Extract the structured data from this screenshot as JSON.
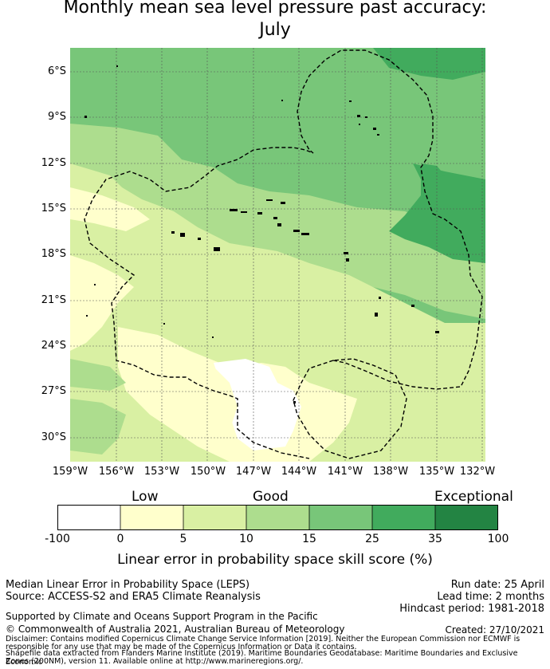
{
  "title_line1": "Monthly mean sea level pressure past accuracy:",
  "title_line2": "July",
  "y_ticks": [
    "6°S",
    "9°S",
    "12°S",
    "15°S",
    "18°S",
    "21°S",
    "24°S",
    "27°S",
    "30°S"
  ],
  "x_ticks": [
    "159°W",
    "156°W",
    "153°W",
    "150°W",
    "147°W",
    "144°W",
    "141°W",
    "138°W",
    "135°W",
    "132°W"
  ],
  "colorbar": {
    "category_labels": [
      "Low",
      "Good",
      "Exceptional"
    ],
    "ticks": [
      "-100",
      "0",
      "5",
      "10",
      "15",
      "25",
      "35",
      "100"
    ],
    "colors": [
      "#ffffff",
      "#ffffcc",
      "#d9f0a3",
      "#addd8e",
      "#78c679",
      "#41ab5d",
      "#238443"
    ],
    "label": "Linear error in probability space skill score (%)"
  },
  "footer": {
    "left_line1": "Median Linear Error in Probability Space (LEPS)",
    "left_line2": "Source: ACCESS-S2 and ERA5 Climate Reanalysis",
    "run_date": "Run date: 25 April",
    "lead_time": "Lead time: 2 months",
    "hindcast": "Hindcast period: 1981-2018",
    "supported": "Supported by Climate and Oceans Support Program in the Pacific",
    "copyright": "© Commonwealth of Australia 2021, Australian Bureau of Meteorology",
    "created": "Created: 27/10/2021",
    "disclaimer1": "Disclaimer: Contains modified Copernicus Climate Change Service Information [2019]. Neither the European Commission nor ECMWF is",
    "disclaimer2": "responsible for any use that may be made of the Copernicus Information or Data it contains.",
    "disclaimer3": "Shapefile data extracted from Flanders Marine Institute (2019). Maritime Boundaries Geodatabase: Maritime Boundaries and Exclusive Economic",
    "disclaimer4": "Zones (200NM), version 11. Available online at http://www.marineregions.org/."
  }
}
